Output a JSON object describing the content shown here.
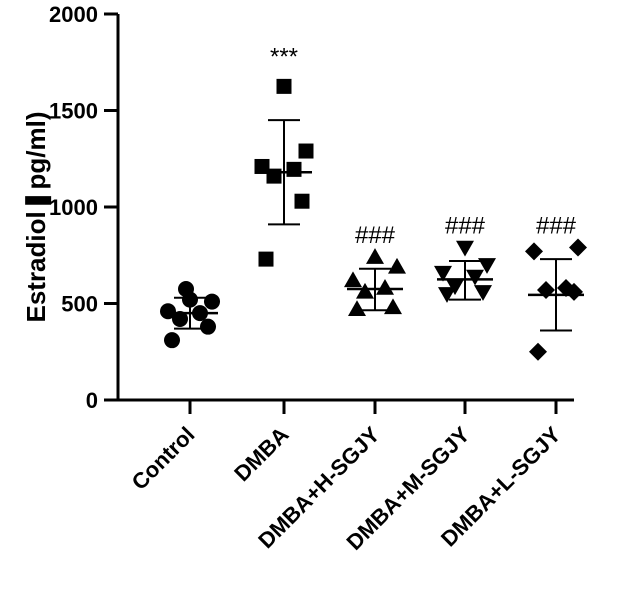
{
  "chart_data": {
    "type": "scatter",
    "title": "",
    "xlabel": "",
    "ylabel": "Estradiol❚pg/ml)",
    "ylim": [
      0,
      2000
    ],
    "yticks": [
      0,
      500,
      1000,
      1500,
      2000
    ],
    "categories": [
      "Control",
      "DMBA",
      "DMBA+H-SGJY",
      "DMBA+M-SGJY",
      "DMBA+L-SGJY"
    ],
    "groups": [
      {
        "name": "Control",
        "marker": "circle",
        "points": [
          310,
          380,
          420,
          450,
          460,
          510,
          520,
          575
        ],
        "mean": 450,
        "sd_low": 370,
        "sd_high": 530,
        "annotation": ""
      },
      {
        "name": "DMBA",
        "marker": "square",
        "points": [
          730,
          1030,
          1160,
          1195,
          1210,
          1290,
          1625
        ],
        "mean": 1180,
        "sd_low": 910,
        "sd_high": 1450,
        "annotation": "***"
      },
      {
        "name": "DMBA+H-SGJY",
        "marker": "triangle-up",
        "points": [
          470,
          480,
          560,
          580,
          620,
          690,
          740
        ],
        "mean": 575,
        "sd_low": 465,
        "sd_high": 680,
        "annotation": "###"
      },
      {
        "name": "DMBA+M-SGJY",
        "marker": "triangle-down",
        "points": [
          550,
          560,
          590,
          640,
          660,
          700,
          790
        ],
        "mean": 625,
        "sd_low": 520,
        "sd_high": 720,
        "annotation": "###"
      },
      {
        "name": "DMBA+L-SGJY",
        "marker": "diamond",
        "points": [
          250,
          560,
          570,
          580,
          770,
          790
        ],
        "mean": 545,
        "sd_low": 360,
        "sd_high": 730,
        "annotation": "###"
      }
    ]
  }
}
